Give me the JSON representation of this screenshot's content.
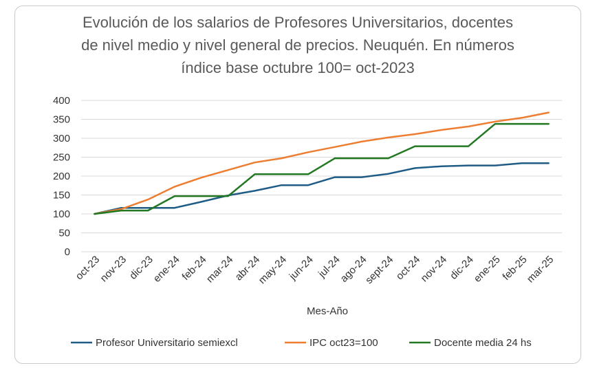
{
  "chart_data": {
    "type": "line",
    "title_lines": [
      "Evolución de los salarios de Profesores Universitarios, docentes",
      "de nivel medio y nivel general de precios. Neuquén. En números",
      "índice base octubre 100= oct-2023"
    ],
    "xlabel": "Mes-Año",
    "ylabel": "",
    "ylim": [
      0,
      400
    ],
    "yticks": [
      "0",
      "50",
      "100",
      "150",
      "200",
      "250",
      "300",
      "350",
      "400"
    ],
    "grid": true,
    "legend_position": "bottom",
    "categories": [
      "oct-23",
      "nov-23",
      "dic-23",
      "ene-24",
      "feb-24",
      "mar-24",
      "abr-24",
      "may-24",
      "jun-24",
      "jul-24",
      "ago-24",
      "sept-24",
      "oct-24",
      "nov-24",
      "dic-24",
      "ene-25",
      "feb-25",
      "mar-25"
    ],
    "series": [
      {
        "name": "Profesor Universitario semiexcl",
        "color": "#1f5c85",
        "values": [
          100,
          116,
          116,
          116,
          132,
          149,
          161,
          176,
          176,
          197,
          197,
          206,
          221,
          226,
          228,
          228,
          234,
          234
        ]
      },
      {
        "name": "IPC oct23=100",
        "color": "#ed7d31",
        "values": [
          100,
          113,
          138,
          172,
          196,
          216,
          236,
          247,
          263,
          277,
          291,
          302,
          311,
          322,
          331,
          344,
          354,
          368
        ]
      },
      {
        "name": "Docente media 24 hs",
        "color": "#217821",
        "values": [
          100,
          109,
          109,
          147,
          147,
          147,
          205,
          205,
          205,
          247,
          247,
          247,
          279,
          279,
          279,
          338,
          338,
          338
        ]
      }
    ]
  }
}
